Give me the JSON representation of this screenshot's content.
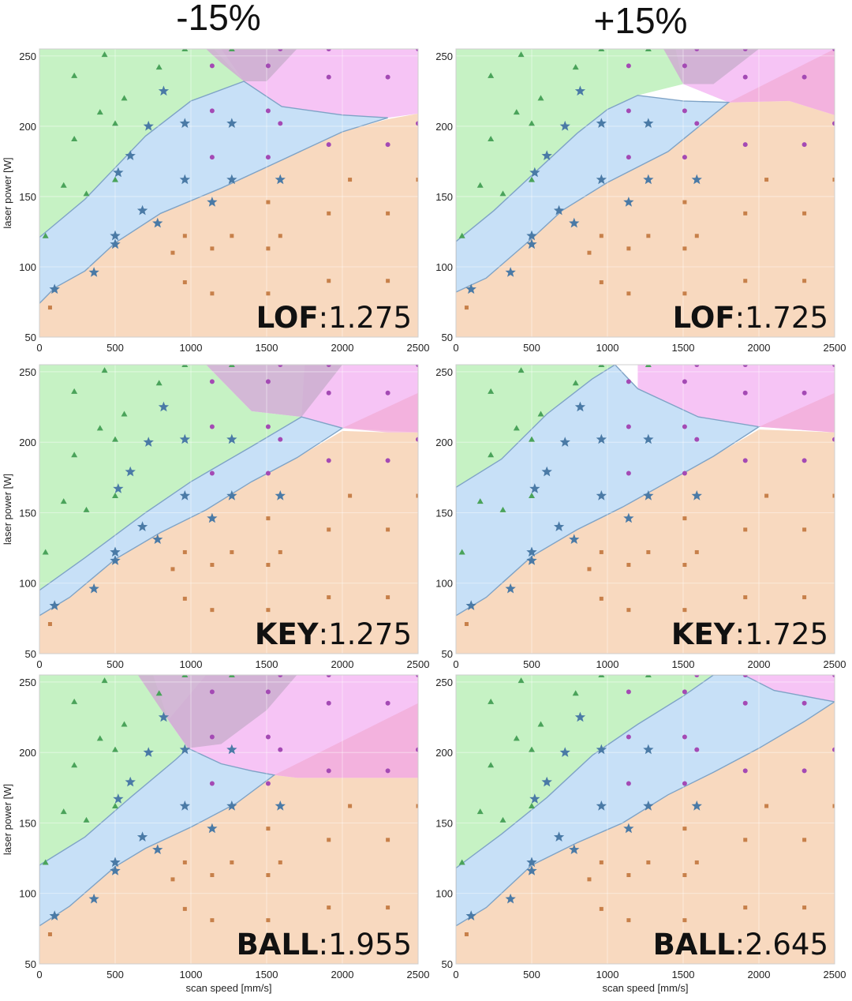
{
  "column_headers": [
    "-15%",
    "+15%"
  ],
  "colors": {
    "conduction_region": "#f8d9bf",
    "keyhole_region": "#c7e0f7",
    "lof_region": "#c6f2c4",
    "ball_region": "#f6c4f5",
    "overlap_region": "#ceb0d2",
    "pink_overlap": "#f1acd6",
    "boundary": "#7fa3c6",
    "star_marker": "#4a7aa6",
    "triangle_marker": "#4aa35a",
    "circle_marker": "#a44ab4",
    "square_marker": "#c7804a"
  },
  "chart_data": [
    {
      "type": "scatter",
      "panel_label": {
        "name": "LOF",
        "value": ":1.275"
      },
      "xlabel": "",
      "ylabel": "laser power [W]",
      "xlim": [
        0,
        2500
      ],
      "ylim": [
        50,
        255
      ],
      "xticks": [
        "0",
        "500",
        "1000",
        "1500",
        "2000",
        "2500"
      ],
      "yticks": [
        "50",
        "100",
        "150",
        "200",
        "250"
      ]
    },
    {
      "type": "scatter",
      "panel_label": {
        "name": "LOF",
        "value": ":1.725"
      },
      "xlabel": "",
      "ylabel": "",
      "xlim": [
        0,
        2500
      ],
      "ylim": [
        50,
        255
      ],
      "xticks": [
        "0",
        "500",
        "1000",
        "1500",
        "2000",
        "2500"
      ],
      "yticks": [
        "50",
        "100",
        "150",
        "200",
        "250"
      ]
    },
    {
      "type": "scatter",
      "panel_label": {
        "name": "KEY",
        "value": ":1.275"
      },
      "xlabel": "",
      "ylabel": "laser power [W]",
      "xlim": [
        0,
        2500
      ],
      "ylim": [
        50,
        255
      ],
      "xticks": [
        "0",
        "500",
        "1000",
        "1500",
        "2000",
        "2500"
      ],
      "yticks": [
        "50",
        "100",
        "150",
        "200",
        "250"
      ]
    },
    {
      "type": "scatter",
      "panel_label": {
        "name": "KEY",
        "value": ":1.725"
      },
      "xlabel": "",
      "ylabel": "",
      "xlim": [
        0,
        2500
      ],
      "ylim": [
        50,
        255
      ],
      "xticks": [
        "0",
        "500",
        "1000",
        "1500",
        "2000",
        "2500"
      ],
      "yticks": [
        "50",
        "100",
        "150",
        "200",
        "250"
      ]
    },
    {
      "type": "scatter",
      "panel_label": {
        "name": "BALL",
        "value": ":1.955"
      },
      "xlabel": "scan speed [mm/s]",
      "ylabel": "laser power [W]",
      "xlim": [
        0,
        2500
      ],
      "ylim": [
        50,
        255
      ],
      "xticks": [
        "0",
        "500",
        "1000",
        "1500",
        "2000",
        "2500"
      ],
      "yticks": [
        "50",
        "100",
        "150",
        "200",
        "250"
      ]
    },
    {
      "type": "scatter",
      "panel_label": {
        "name": "BALL",
        "value": ":2.645"
      },
      "xlabel": "scan speed [mm/s]",
      "ylabel": "",
      "xlim": [
        0,
        2500
      ],
      "ylim": [
        50,
        255
      ],
      "xticks": [
        "0",
        "500",
        "1000",
        "1500",
        "2000",
        "2500"
      ],
      "yticks": [
        "50",
        "100",
        "150",
        "200",
        "250"
      ]
    }
  ],
  "points": {
    "stars": [
      [
        100,
        84
      ],
      [
        360,
        96
      ],
      [
        500,
        116
      ],
      [
        500,
        122
      ],
      [
        520,
        167
      ],
      [
        600,
        179
      ],
      [
        680,
        140
      ],
      [
        720,
        200
      ],
      [
        780,
        131
      ],
      [
        820,
        225
      ],
      [
        960,
        162
      ],
      [
        960,
        202
      ],
      [
        1140,
        146
      ],
      [
        1270,
        162
      ],
      [
        1270,
        202
      ],
      [
        1590,
        162
      ]
    ],
    "triangles": [
      [
        40,
        122
      ],
      [
        160,
        158
      ],
      [
        230,
        191
      ],
      [
        230,
        236
      ],
      [
        310,
        152
      ],
      [
        400,
        210
      ],
      [
        430,
        251
      ],
      [
        500,
        162
      ],
      [
        500,
        202
      ],
      [
        560,
        220
      ],
      [
        790,
        242
      ],
      [
        960,
        255
      ],
      [
        1270,
        255
      ]
    ],
    "circles": [
      [
        1140,
        178
      ],
      [
        1140,
        211
      ],
      [
        1140,
        243
      ],
      [
        1510,
        178
      ],
      [
        1510,
        211
      ],
      [
        1510,
        243
      ],
      [
        1590,
        202
      ],
      [
        1590,
        255
      ],
      [
        1910,
        187
      ],
      [
        1910,
        235
      ],
      [
        1910,
        255
      ],
      [
        2300,
        187
      ],
      [
        2300,
        235
      ],
      [
        2500,
        202
      ],
      [
        2500,
        255
      ]
    ],
    "squares": [
      [
        70,
        71
      ],
      [
        880,
        110
      ],
      [
        960,
        89
      ],
      [
        960,
        122
      ],
      [
        1140,
        81
      ],
      [
        1140,
        113
      ],
      [
        1270,
        122
      ],
      [
        1510,
        81
      ],
      [
        1510,
        113
      ],
      [
        1510,
        146
      ],
      [
        1590,
        122
      ],
      [
        1910,
        90
      ],
      [
        1910,
        138
      ],
      [
        2050,
        162
      ],
      [
        2300,
        90
      ],
      [
        2300,
        138
      ],
      [
        2500,
        162
      ]
    ]
  }
}
